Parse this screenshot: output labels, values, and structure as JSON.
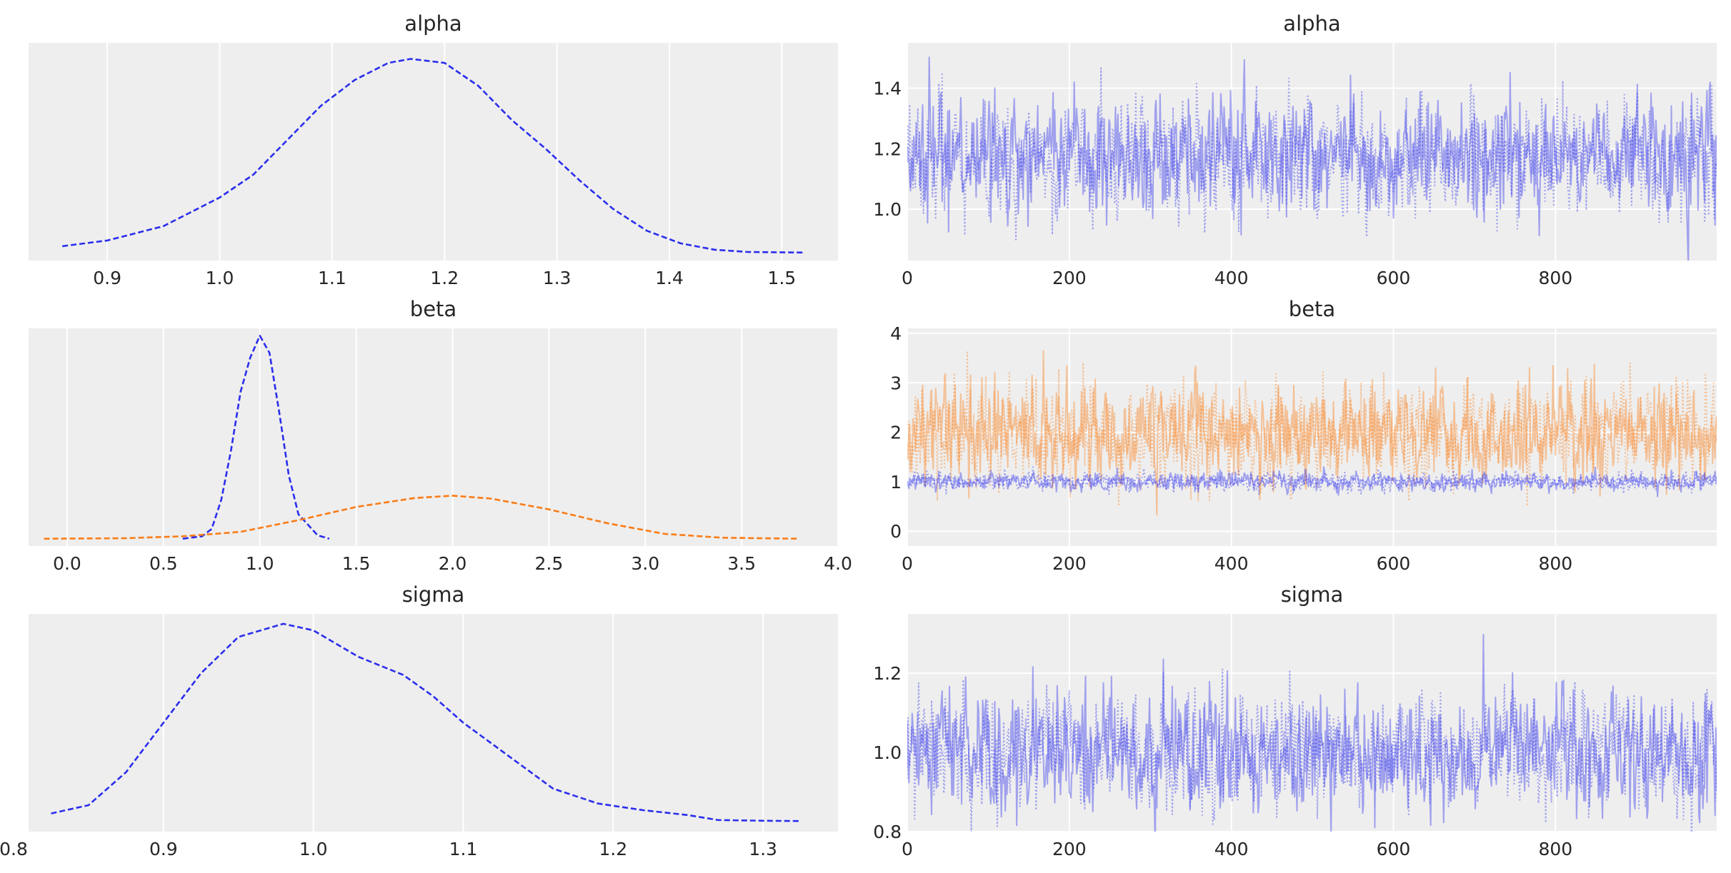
{
  "chart_data": [
    {
      "type": "line",
      "plot": "density",
      "title": "alpha",
      "xlim": [
        0.83,
        1.55
      ],
      "xticks": [
        0.9,
        1.0,
        1.1,
        1.2,
        1.3,
        1.4,
        1.5
      ],
      "xtick_labels": [
        "0.9",
        "1.0",
        "1.1",
        "1.2",
        "1.3",
        "1.4",
        "1.5"
      ],
      "ylim": [
        -0.1,
        3.7
      ],
      "grid": "vertical",
      "series": [
        {
          "color": "#2a2eec",
          "style": "dashed",
          "x": [
            0.86,
            0.9,
            0.95,
            1.0,
            1.03,
            1.06,
            1.09,
            1.12,
            1.15,
            1.17,
            1.2,
            1.23,
            1.26,
            1.29,
            1.32,
            1.35,
            1.38,
            1.41,
            1.44,
            1.47,
            1.52
          ],
          "y": [
            0.15,
            0.25,
            0.5,
            1.0,
            1.4,
            2.0,
            2.6,
            3.05,
            3.35,
            3.42,
            3.35,
            2.95,
            2.35,
            1.85,
            1.3,
            0.8,
            0.42,
            0.2,
            0.09,
            0.05,
            0.04
          ]
        }
      ]
    },
    {
      "type": "line",
      "plot": "trace",
      "title": "alpha",
      "xlim": [
        0,
        999
      ],
      "xticks": [
        0,
        200,
        400,
        600,
        800
      ],
      "xtick_labels": [
        "0",
        "200",
        "400",
        "600",
        "800"
      ],
      "ylim": [
        0.83,
        1.55
      ],
      "yticks": [
        1.0,
        1.2,
        1.4
      ],
      "ytick_labels": [
        "1.0",
        "1.2",
        "1.4"
      ],
      "grid": "both",
      "series": [
        {
          "color": "#2a2eec",
          "style": "solid",
          "opacity": 0.4,
          "n": 1000,
          "mean": 1.17,
          "sd": 0.095
        },
        {
          "color": "#2a2eec",
          "style": "dotted",
          "opacity": 0.4,
          "n": 1000,
          "mean": 1.17,
          "sd": 0.095
        }
      ]
    },
    {
      "type": "line",
      "plot": "density",
      "title": "beta",
      "xlim": [
        -0.2,
        4.0
      ],
      "xticks": [
        0.0,
        0.5,
        1.0,
        1.5,
        2.0,
        2.5,
        3.0,
        3.5,
        4.0
      ],
      "xtick_labels": [
        "0.0",
        "0.5",
        "1.0",
        "1.5",
        "2.0",
        "2.5",
        "3.0",
        "3.5",
        "4.0"
      ],
      "ylim": [
        -0.15,
        4.3
      ],
      "grid": "vertical",
      "series": [
        {
          "color": "#2a2eec",
          "style": "dashed",
          "x": [
            0.6,
            0.7,
            0.75,
            0.8,
            0.85,
            0.9,
            0.95,
            1.0,
            1.05,
            1.1,
            1.15,
            1.2,
            1.3,
            1.36
          ],
          "y": [
            0.0,
            0.05,
            0.2,
            0.8,
            1.8,
            3.0,
            3.7,
            4.15,
            3.8,
            2.6,
            1.3,
            0.5,
            0.07,
            0.0
          ]
        },
        {
          "color": "#fa7c17",
          "style": "dashed",
          "x": [
            -0.12,
            0.3,
            0.6,
            0.9,
            1.2,
            1.5,
            1.8,
            2.0,
            2.2,
            2.5,
            2.8,
            3.1,
            3.4,
            3.8
          ],
          "y": [
            0.0,
            0.01,
            0.05,
            0.14,
            0.38,
            0.65,
            0.83,
            0.88,
            0.82,
            0.6,
            0.32,
            0.1,
            0.02,
            0.0
          ]
        }
      ]
    },
    {
      "type": "line",
      "plot": "trace",
      "title": "beta",
      "xlim": [
        0,
        999
      ],
      "xticks": [
        0,
        200,
        400,
        600,
        800
      ],
      "xtick_labels": [
        "0",
        "200",
        "400",
        "600",
        "800"
      ],
      "ylim": [
        -0.3,
        4.1
      ],
      "yticks": [
        0,
        1,
        2,
        3,
        4
      ],
      "ytick_labels": [
        "0",
        "1",
        "2",
        "3",
        "4"
      ],
      "grid": "both",
      "series": [
        {
          "color": "#fa7c17",
          "style": "solid",
          "opacity": 0.4,
          "n": 1000,
          "mean": 2.0,
          "sd": 0.5
        },
        {
          "color": "#fa7c17",
          "style": "dotted",
          "opacity": 0.4,
          "n": 1000,
          "mean": 2.0,
          "sd": 0.5
        },
        {
          "color": "#2a2eec",
          "style": "solid",
          "opacity": 0.4,
          "n": 1000,
          "mean": 1.0,
          "sd": 0.09
        },
        {
          "color": "#2a2eec",
          "style": "dotted",
          "opacity": 0.4,
          "n": 1000,
          "mean": 1.0,
          "sd": 0.09
        }
      ]
    },
    {
      "type": "line",
      "plot": "density",
      "title": "sigma",
      "xlim": [
        0.81,
        1.35
      ],
      "xticks": [
        0.8,
        0.9,
        1.0,
        1.1,
        1.2,
        1.3
      ],
      "xtick_labels": [
        "0.8",
        "0.9",
        "1.0",
        "1.1",
        "1.2",
        "1.3"
      ],
      "ylim": [
        -0.3,
        6.3
      ],
      "grid": "vertical",
      "series": [
        {
          "color": "#2a2eec",
          "style": "dashed",
          "x": [
            0.825,
            0.85,
            0.875,
            0.9,
            0.925,
            0.95,
            0.98,
            1.0,
            1.03,
            1.06,
            1.08,
            1.1,
            1.13,
            1.16,
            1.19,
            1.22,
            1.25,
            1.27,
            1.3,
            1.325
          ],
          "y": [
            0.25,
            0.5,
            1.5,
            3.0,
            4.5,
            5.6,
            6.0,
            5.8,
            5.0,
            4.45,
            3.8,
            3.0,
            2.0,
            1.0,
            0.55,
            0.35,
            0.2,
            0.05,
            0.03,
            0.02
          ]
        }
      ]
    },
    {
      "type": "line",
      "plot": "trace",
      "title": "sigma",
      "xlim": [
        0,
        999
      ],
      "xticks": [
        0,
        200,
        400,
        600,
        800
      ],
      "xtick_labels": [
        "0",
        "200",
        "400",
        "600",
        "800"
      ],
      "ylim": [
        0.8,
        1.35
      ],
      "yticks": [
        0.8,
        1.0,
        1.2
      ],
      "ytick_labels": [
        "0.8",
        "1.0",
        "1.2"
      ],
      "grid": "both",
      "series": [
        {
          "color": "#2a2eec",
          "style": "solid",
          "opacity": 0.4,
          "n": 1000,
          "mean": 1.0,
          "sd": 0.075
        },
        {
          "color": "#2a2eec",
          "style": "dotted",
          "opacity": 0.4,
          "n": 1000,
          "mean": 1.0,
          "sd": 0.075
        }
      ]
    }
  ]
}
